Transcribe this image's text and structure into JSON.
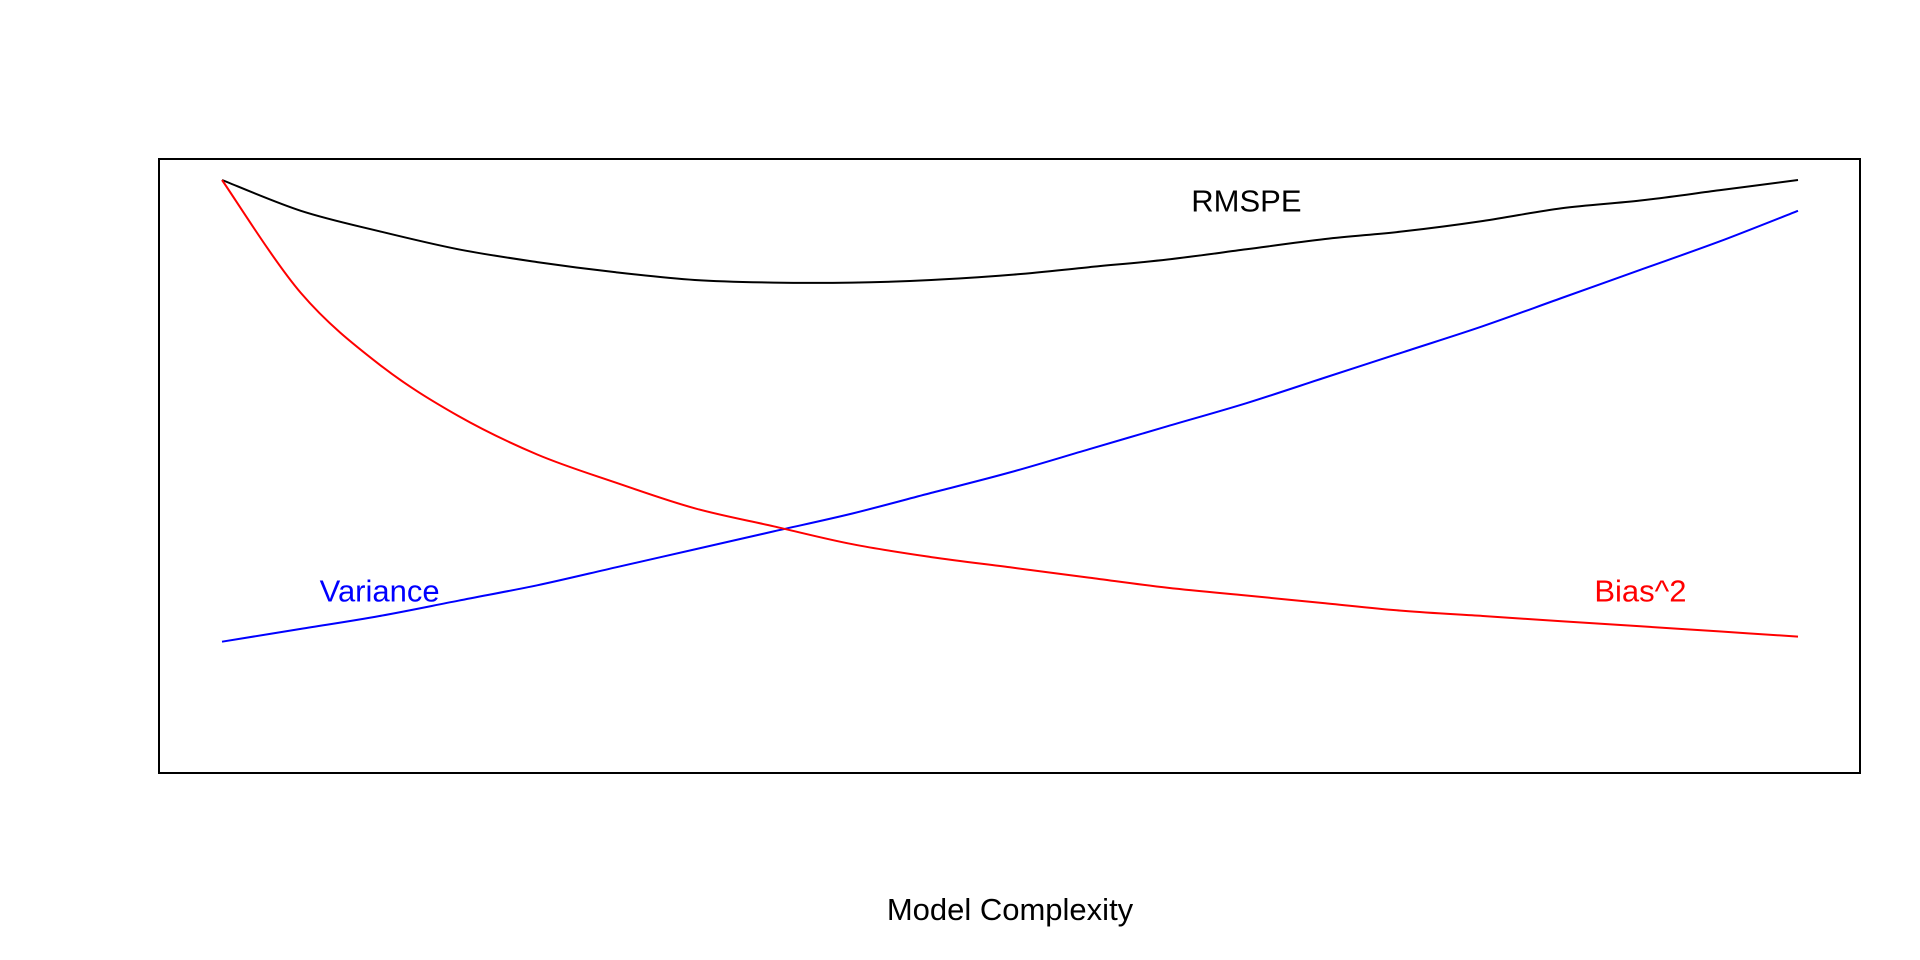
{
  "chart_data": {
    "type": "line",
    "title": "",
    "xlabel": "Model Complexity",
    "ylabel": "",
    "xlim": [
      0,
      1
    ],
    "ylim": [
      0,
      1
    ],
    "grid": false,
    "axes_ticks": false,
    "legend": "none",
    "x": [
      0.0,
      0.05,
      0.1,
      0.15,
      0.2,
      0.25,
      0.3,
      0.35,
      0.4,
      0.45,
      0.5,
      0.55,
      0.6,
      0.65,
      0.7,
      0.75,
      0.8,
      0.85,
      0.9,
      0.95,
      1.0
    ],
    "series": [
      {
        "name": "RMSPE",
        "color": "#000000",
        "values": [
          1.0,
          0.94,
          0.9,
          0.865,
          0.84,
          0.82,
          0.805,
          0.8,
          0.8,
          0.805,
          0.815,
          0.83,
          0.845,
          0.865,
          0.885,
          0.9,
          0.92,
          0.945,
          0.96,
          0.98,
          1.0
        ]
      },
      {
        "name": "Variance",
        "color": "#0000ff",
        "values": [
          0.1,
          0.125,
          0.15,
          0.18,
          0.21,
          0.245,
          0.28,
          0.315,
          0.35,
          0.39,
          0.43,
          0.475,
          0.52,
          0.565,
          0.615,
          0.665,
          0.715,
          0.77,
          0.825,
          0.88,
          0.94
        ]
      },
      {
        "name": "Bias^2",
        "color": "#ff0000",
        "values": [
          1.0,
          0.78,
          0.64,
          0.54,
          0.465,
          0.41,
          0.36,
          0.325,
          0.29,
          0.265,
          0.245,
          0.225,
          0.205,
          0.19,
          0.175,
          0.16,
          0.15,
          0.14,
          0.13,
          0.12,
          0.11
        ]
      }
    ],
    "annotations": [
      {
        "text": "RMSPE",
        "color": "#000000",
        "anchor_x": 0.65,
        "anchor_y": 0.96
      },
      {
        "text": "Variance",
        "color": "#0000ff",
        "anchor_x": 0.1,
        "anchor_y": 0.2
      },
      {
        "text": "Bias^2",
        "color": "#ff0000",
        "anchor_x": 0.9,
        "anchor_y": 0.2
      }
    ]
  }
}
